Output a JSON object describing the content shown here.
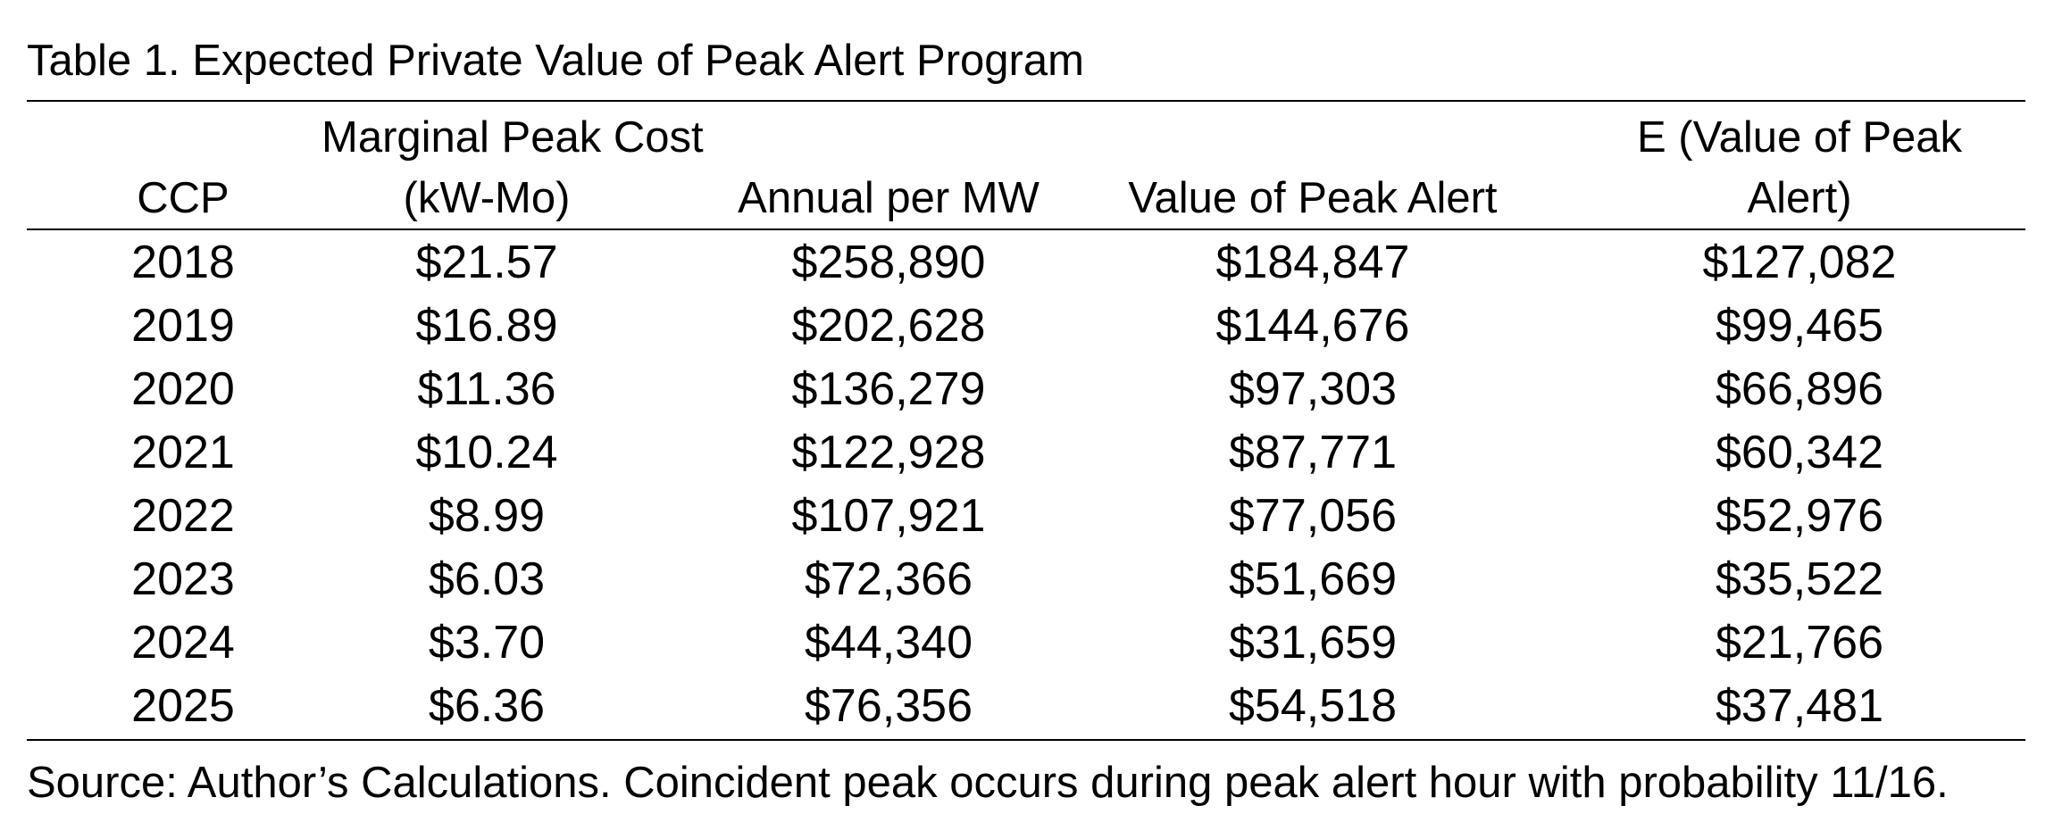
{
  "table": {
    "caption": "Table 1.  Expected Private Value of Peak Alert Program",
    "headers": {
      "ccp": "CCP",
      "marginal_line1": "Marginal Peak Cost",
      "marginal_line2": "(kW-Mo)",
      "annual": "Annual per MW",
      "value": "Value of Peak Alert",
      "expected_line1": "E (Value of Peak",
      "expected_line2": "Alert)"
    },
    "rows": [
      [
        "2018",
        "$21.57",
        "$258,890",
        "$184,847",
        "$127,082"
      ],
      [
        "2019",
        "$16.89",
        "$202,628",
        "$144,676",
        "$99,465"
      ],
      [
        "2020",
        "$11.36",
        "$136,279",
        "$97,303",
        "$66,896"
      ],
      [
        "2021",
        "$10.24",
        "$122,928",
        "$87,771",
        "$60,342"
      ],
      [
        "2022",
        "$8.99",
        "$107,921",
        "$77,056",
        "$52,976"
      ],
      [
        "2023",
        "$6.03",
        "$72,366",
        "$51,669",
        "$35,522"
      ],
      [
        "2024",
        "$3.70",
        "$44,340",
        "$31,659",
        "$21,766"
      ],
      [
        "2025",
        "$6.36",
        "$76,356",
        "$54,518",
        "$37,481"
      ]
    ],
    "source": "Source: Author’s Calculations.  Coincident peak occurs during peak alert hour with probability 11/16."
  }
}
